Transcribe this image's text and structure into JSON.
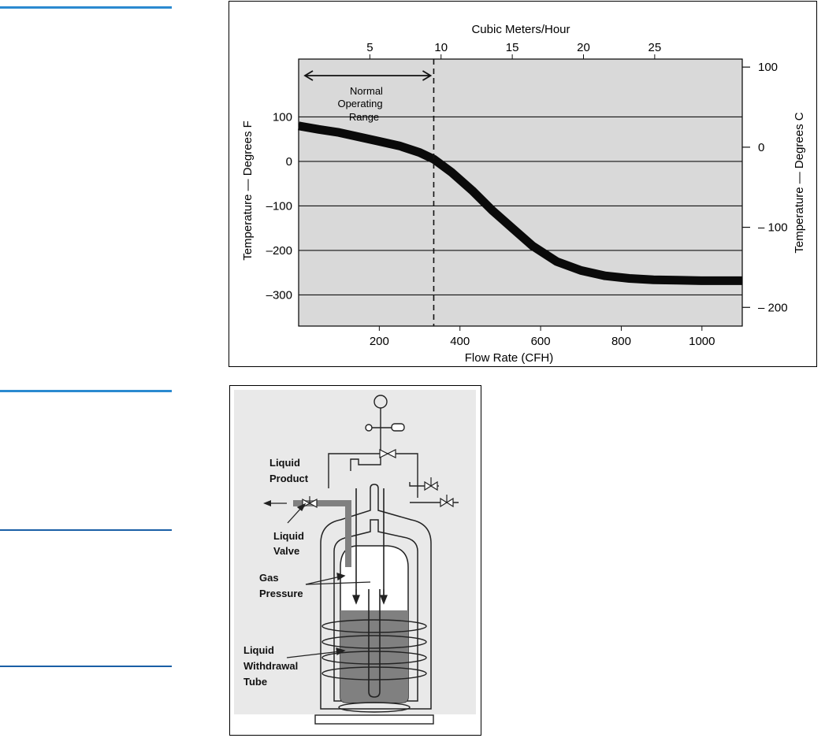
{
  "figure1": {
    "chart_data": {
      "type": "line",
      "top_axis_label": "Cubic Meters/Hour",
      "top_ticks": [
        5,
        10,
        15,
        20,
        25
      ],
      "xlabel": "Flow Rate (CFH)",
      "x_ticks": [
        200,
        400,
        600,
        800,
        1000
      ],
      "xlim": [
        0,
        1100
      ],
      "ylabel": "Temperature — Degrees F",
      "y_ticks": [
        100,
        0,
        -100,
        -200,
        -300
      ],
      "ylim": [
        -370,
        230
      ],
      "right_label": "Temperature — Degrees C",
      "right_ticks": [
        100,
        0,
        -100,
        -200
      ],
      "annotation_lines": [
        "Normal",
        "Operating",
        "Range"
      ],
      "range_limit_x": 335,
      "grid": true,
      "series": [
        {
          "x": [
            0,
            50,
            100,
            150,
            200,
            250,
            300,
            335,
            380,
            430,
            480,
            530,
            580,
            640,
            700,
            760,
            820,
            880,
            940,
            1000,
            1100
          ],
          "y": [
            80,
            72,
            65,
            55,
            45,
            35,
            20,
            5,
            -25,
            -65,
            -110,
            -150,
            -190,
            -225,
            -245,
            -257,
            -263,
            -266,
            -267,
            -268,
            -268
          ]
        }
      ],
      "colors": {
        "background": "#d9d9d9",
        "curve": "#0a0a0a"
      }
    }
  },
  "figure2": {
    "labels": {
      "liquid_product": [
        "Liquid",
        "Product"
      ],
      "liquid_valve": [
        "Liquid",
        "Valve"
      ],
      "gas_pressure": [
        "Gas",
        "Pressure"
      ],
      "liquid_withdrawal_tube": [
        "Liquid",
        "Withdrawal",
        "Tube"
      ]
    },
    "colors": {
      "liquid": "#808080",
      "line": "#222222",
      "background": "#e9e9e9"
    }
  }
}
